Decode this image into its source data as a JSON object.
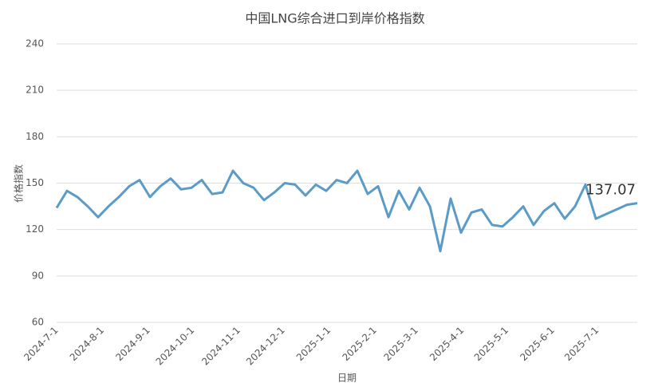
{
  "chart_data": {
    "type": "line",
    "title": "中国LNG综合进口到岸价格指数",
    "x_label": "日期",
    "y_label": "价格指数",
    "x": [
      "2024-7-1",
      "2024-7-8",
      "2024-7-15",
      "2024-7-22",
      "2024-7-29",
      "2024-8-5",
      "2024-8-12",
      "2024-8-19",
      "2024-8-26",
      "2024-9-2",
      "2024-9-9",
      "2024-9-16",
      "2024-9-23",
      "2024-9-30",
      "2024-10-7",
      "2024-10-14",
      "2024-10-21",
      "2024-10-28",
      "2024-11-4",
      "2024-11-11",
      "2024-11-18",
      "2024-11-25",
      "2024-12-2",
      "2024-12-9",
      "2024-12-16",
      "2024-12-23",
      "2024-12-30",
      "2025-1-6",
      "2025-1-13",
      "2025-1-20",
      "2025-1-27",
      "2025-2-3",
      "2025-2-10",
      "2025-2-17",
      "2025-2-24",
      "2025-3-3",
      "2025-3-10",
      "2025-3-17",
      "2025-3-24",
      "2025-3-31",
      "2025-4-7",
      "2025-4-14",
      "2025-4-21",
      "2025-4-28",
      "2025-5-5",
      "2025-5-12",
      "2025-5-19",
      "2025-5-26",
      "2025-6-2",
      "2025-6-9",
      "2025-6-16",
      "2025-6-23",
      "2025-6-30",
      "2025-7-7",
      "2025-7-14",
      "2025-7-21",
      "2025-7-28"
    ],
    "series": [
      {
        "color": "#5b9bc8",
        "values": [
          134,
          145,
          141,
          135,
          128,
          135,
          141,
          148,
          152,
          141,
          148,
          153,
          146,
          147,
          152,
          143,
          144,
          158,
          150,
          147,
          139,
          144,
          150,
          149,
          142,
          149,
          145,
          152,
          150,
          158,
          143,
          148,
          128,
          145,
          133,
          147,
          135,
          106,
          140,
          118,
          131,
          133,
          123,
          122,
          128,
          135,
          123,
          132,
          137,
          127,
          135,
          149,
          127,
          130,
          133,
          136,
          137.07
        ]
      }
    ],
    "xlim": [
      "2024-7-1",
      "2025-7-28"
    ],
    "xticks": [
      "2024-7-1",
      "2024-8-1",
      "2024-9-1",
      "2024-10-1",
      "2024-11-1",
      "2024-12-1",
      "2025-1-1",
      "2025-2-1",
      "2025-3-1",
      "2025-4-1",
      "2025-5-1",
      "2025-6-1",
      "2025-7-1"
    ],
    "ylim": [
      60,
      240
    ],
    "yticks": [
      60,
      90,
      120,
      150,
      180,
      210,
      240
    ],
    "grid": true
  }
}
